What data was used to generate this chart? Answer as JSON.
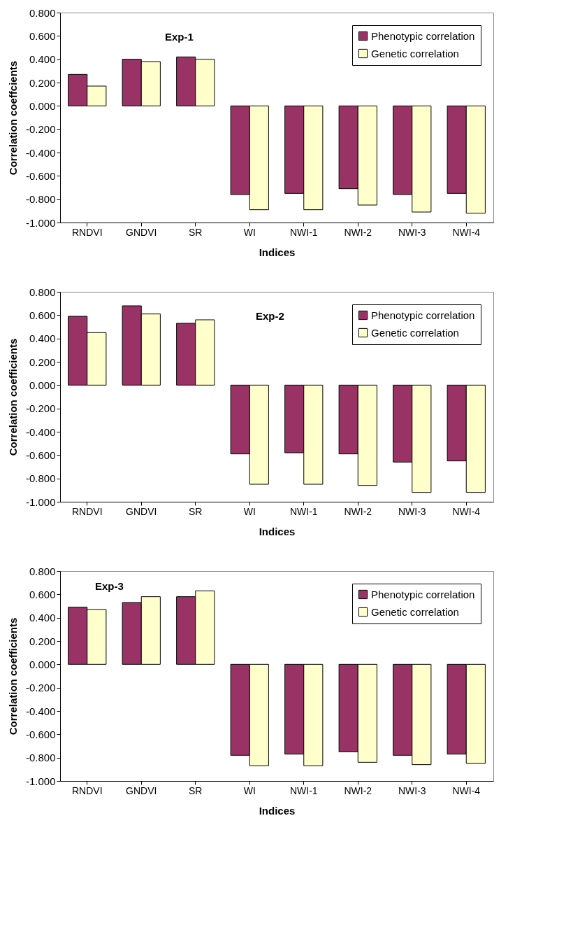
{
  "chart_data": [
    {
      "type": "bar",
      "ylabel": "Correlation coeffcients",
      "xlabel": "Indices",
      "annotations": [
        "Exp-1"
      ],
      "categories": [
        "RNDVI",
        "GNDVI",
        "SR",
        "WI",
        "NWI-1",
        "NWI-2",
        "NWI-3",
        "NWI-4"
      ],
      "series": [
        {
          "name": "Phenotypic correlation",
          "color": "#993366",
          "values": [
            0.27,
            0.4,
            0.42,
            -0.76,
            -0.75,
            -0.71,
            -0.76,
            -0.75
          ]
        },
        {
          "name": "Genetic correlation",
          "color": "#ffffcc",
          "values": [
            0.17,
            0.38,
            0.4,
            -0.89,
            -0.89,
            -0.85,
            -0.91,
            -0.92
          ]
        }
      ],
      "ylim": [
        -1,
        0.8
      ],
      "yticks": [
        {
          "value": -1,
          "label": "-1.000"
        },
        {
          "value": -0.8,
          "label": "-0.800"
        },
        {
          "value": -0.6,
          "label": "-0.600"
        },
        {
          "value": -0.4,
          "label": "-0.400"
        },
        {
          "value": -0.2,
          "label": "-0.200"
        },
        {
          "value": 0,
          "label": "0.000"
        },
        {
          "value": 0.2,
          "label": "0.200"
        },
        {
          "value": 0.4,
          "label": "0.400"
        },
        {
          "value": 0.6,
          "label": "0.600"
        },
        {
          "value": 0.8,
          "label": "0.800"
        }
      ],
      "legend": "top right",
      "grid": false
    },
    {
      "type": "bar",
      "ylabel": "Correlation coefficients",
      "xlabel": "Indices",
      "annotations": [
        "Exp-2"
      ],
      "categories": [
        "RNDVI",
        "GNDVI",
        "SR",
        "WI",
        "NWI-1",
        "NWI-2",
        "NWI-3",
        "NWI-4"
      ],
      "series": [
        {
          "name": "Phenotypic correlation",
          "color": "#993366",
          "values": [
            0.59,
            0.68,
            0.53,
            -0.59,
            -0.58,
            -0.59,
            -0.66,
            -0.65
          ]
        },
        {
          "name": "Genetic correlation",
          "color": "#ffffcc",
          "values": [
            0.45,
            0.61,
            0.56,
            -0.85,
            -0.85,
            -0.86,
            -0.92,
            -0.92
          ]
        }
      ],
      "ylim": [
        -1,
        0.8
      ],
      "yticks": [
        {
          "value": -1,
          "label": "-1.000"
        },
        {
          "value": -0.8,
          "label": "-0.800"
        },
        {
          "value": -0.6,
          "label": "-0.600"
        },
        {
          "value": -0.4,
          "label": "-0.400"
        },
        {
          "value": -0.2,
          "label": "-0.200"
        },
        {
          "value": 0,
          "label": "0.000"
        },
        {
          "value": 0.2,
          "label": "0.200"
        },
        {
          "value": 0.4,
          "label": "0.400"
        },
        {
          "value": 0.6,
          "label": "0.600"
        },
        {
          "value": 0.8,
          "label": "0.800"
        }
      ],
      "legend": "top right",
      "grid": false
    },
    {
      "type": "bar",
      "ylabel": "Correlation coefficients",
      "xlabel": "Indices",
      "annotations": [
        "Exp-3"
      ],
      "categories": [
        "RNDVI",
        "GNDVI",
        "SR",
        "WI",
        "NWI-1",
        "NWI-2",
        "NWI-3",
        "NWI-4"
      ],
      "series": [
        {
          "name": "Phenotypic correlation",
          "color": "#993366",
          "values": [
            0.49,
            0.53,
            0.58,
            -0.78,
            -0.77,
            -0.75,
            -0.78,
            -0.77
          ]
        },
        {
          "name": "Genetic correlation",
          "color": "#ffffcc",
          "values": [
            0.47,
            0.58,
            0.63,
            -0.87,
            -0.87,
            -0.84,
            -0.86,
            -0.85
          ]
        }
      ],
      "ylim": [
        -1,
        0.8
      ],
      "yticks": [
        {
          "value": -1,
          "label": "-1.000"
        },
        {
          "value": -0.8,
          "label": "-0.800"
        },
        {
          "value": -0.6,
          "label": "-0.600"
        },
        {
          "value": -0.4,
          "label": "-0.400"
        },
        {
          "value": -0.2,
          "label": "-0.200"
        },
        {
          "value": 0,
          "label": "0.000"
        },
        {
          "value": 0.2,
          "label": "0.200"
        },
        {
          "value": 0.4,
          "label": "0.400"
        },
        {
          "value": 0.6,
          "label": "0.600"
        },
        {
          "value": 0.8,
          "label": "0.800"
        }
      ],
      "legend": "top right",
      "grid": false
    }
  ]
}
